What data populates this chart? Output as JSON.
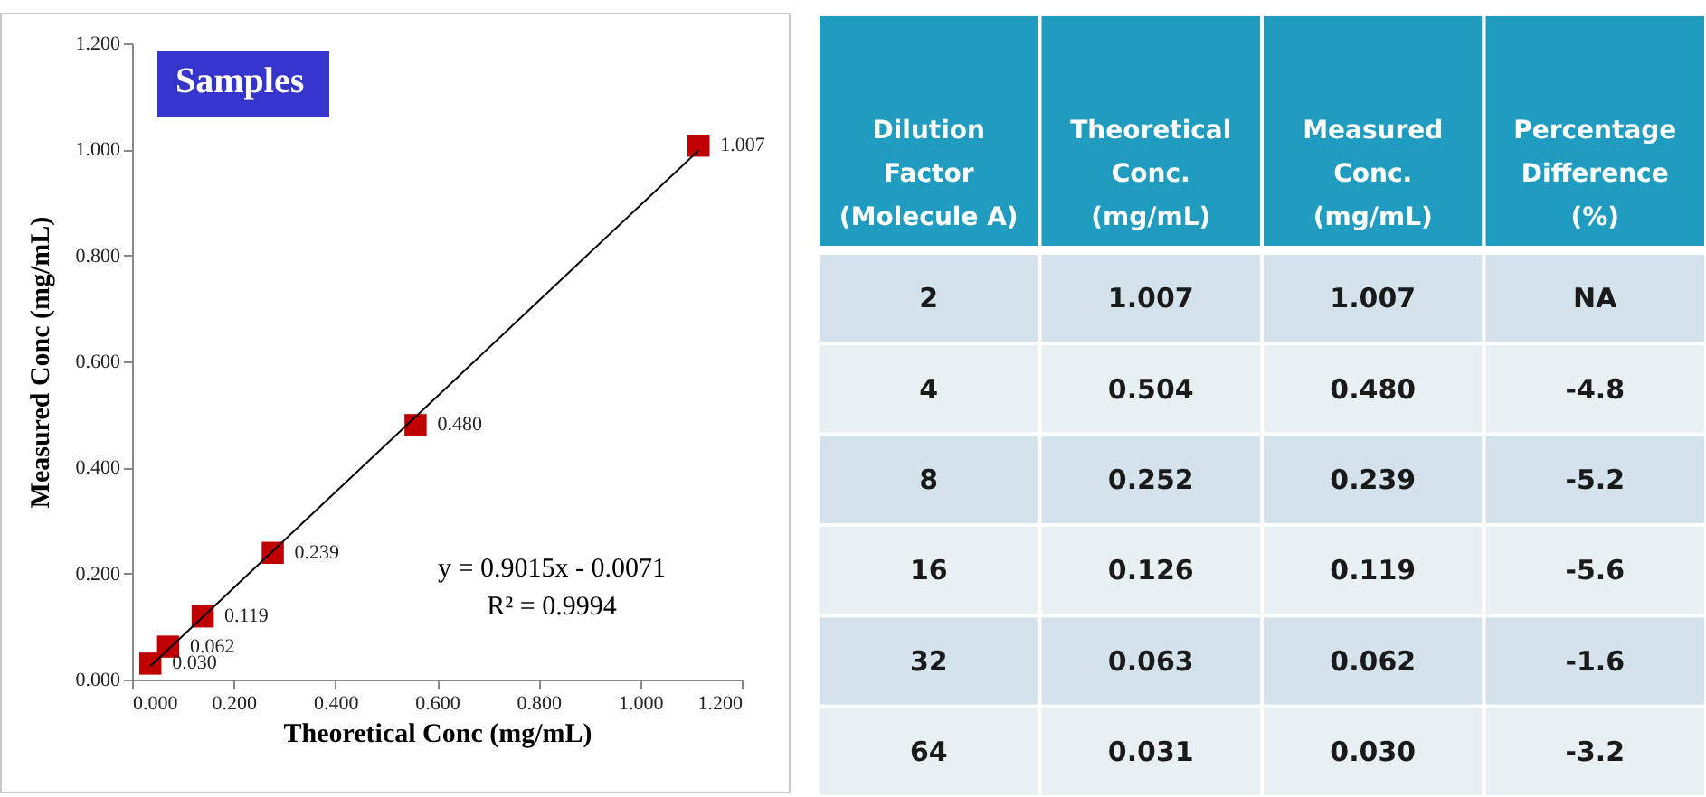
{
  "chart_data": [
    {
      "type": "scatter",
      "title": "Samples",
      "xlabel": "Theoretical Conc (mg/mL)",
      "ylabel": "Measured Conc (mg/mL)",
      "xlim": [
        0,
        1.2
      ],
      "ylim": [
        0,
        1.2
      ],
      "xticks": [
        {
          "value": 0,
          "label": "0.000"
        },
        {
          "value": 0.2,
          "label": "0.200"
        },
        {
          "value": 0.4,
          "label": "0.400"
        },
        {
          "value": 0.6,
          "label": "0.600"
        },
        {
          "value": 0.8,
          "label": "0.800"
        },
        {
          "value": 1,
          "label": "1.000"
        },
        {
          "value": 1.2,
          "label": "1.200"
        }
      ],
      "yticks": [
        {
          "value": 0,
          "label": "0.000"
        },
        {
          "value": 0.2,
          "label": "0.200"
        },
        {
          "value": 0.4,
          "label": "0.400"
        },
        {
          "value": 0.6,
          "label": "0.600"
        },
        {
          "value": 0.8,
          "label": "0.800"
        },
        {
          "value": 1,
          "label": "1.000"
        },
        {
          "value": 1.2,
          "label": "1.200"
        }
      ],
      "annotations": [
        "y = 0.9015x - 0.0071",
        "R² = 0.9994"
      ],
      "series": [
        {
          "type": "scatter",
          "marker": "square",
          "color": "#c00000",
          "x": [
            0.036,
            0.071,
            0.139,
            0.277,
            0.558,
            1.115
          ],
          "values": [
            0.03,
            0.062,
            0.119,
            0.239,
            0.48,
            1.007
          ],
          "value_labels": [
            "0.030",
            "0.062",
            "0.119",
            "0.239",
            "0.480",
            "1.007"
          ]
        },
        {
          "type": "line",
          "color": "#000000",
          "x": [
            0.036,
            1.115
          ],
          "values": [
            0.025,
            0.998
          ]
        }
      ]
    },
    {
      "type": "other",
      "categories": [
        "Dilution\nFactor\n(Molecule A)",
        "Theoretical\nConc.\n(mg/mL)",
        "Measured\nConc.\n(mg/mL)",
        "Percentage\nDifference\n(%)"
      ],
      "cell_labels": [
        [
          "2",
          "1.007",
          "1.007",
          "NA"
        ],
        [
          "4",
          "0.504",
          "0.480",
          "-4.8"
        ],
        [
          "8",
          "0.252",
          "0.239",
          "-5.2"
        ],
        [
          "16",
          "0.126",
          "0.119",
          "-5.6"
        ],
        [
          "32",
          "0.063",
          "0.062",
          "-1.6"
        ],
        [
          "64",
          "0.031",
          "0.030",
          "-3.2"
        ]
      ]
    }
  ]
}
